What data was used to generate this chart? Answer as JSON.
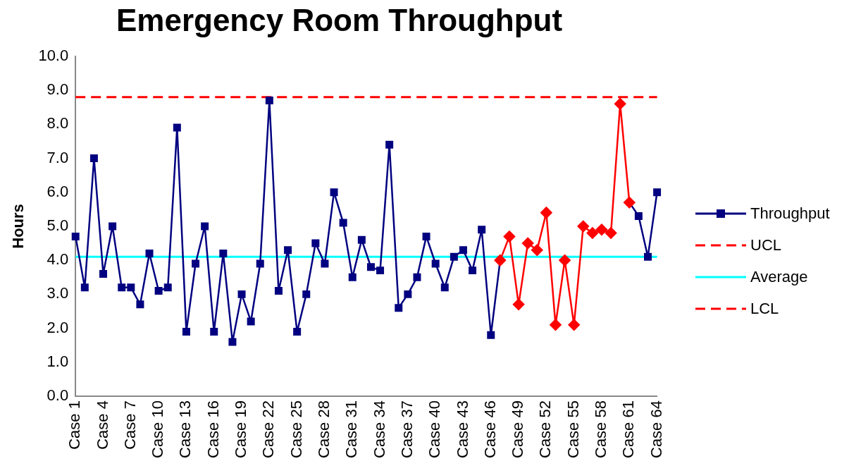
{
  "chart_data": {
    "type": "line",
    "title": "Emergency Room Throughput",
    "ylabel": "Hours",
    "categories": [
      "Case 1",
      null,
      null,
      "Case 4",
      null,
      null,
      "Case 7",
      null,
      null,
      "Case 10",
      null,
      null,
      "Case 13",
      null,
      null,
      "Case 16",
      null,
      null,
      "Case 19",
      null,
      null,
      "Case 22",
      null,
      null,
      "Case 25",
      null,
      null,
      "Case 28",
      null,
      null,
      "Case 31",
      null,
      null,
      "Case 34",
      null,
      null,
      "Case 37",
      null,
      null,
      "Case 40",
      null,
      null,
      "Case 43",
      null,
      null,
      "Case 46",
      null,
      null,
      "Case 49",
      null,
      null,
      "Case 52",
      null,
      null,
      "Case 55",
      null,
      null,
      "Case 58",
      null,
      null,
      "Case 61",
      null,
      null,
      "Case 64"
    ],
    "series": [
      {
        "name": "Throughput",
        "color": "#000080",
        "marker": "square",
        "values": [
          4.7,
          3.2,
          7.0,
          3.6,
          5.0,
          3.2,
          3.2,
          2.7,
          4.2,
          3.1,
          3.2,
          7.9,
          1.9,
          3.9,
          5.0,
          1.9,
          4.2,
          1.6,
          3.0,
          2.2,
          3.9,
          8.7,
          3.1,
          4.3,
          1.9,
          3.0,
          4.5,
          3.9,
          6.0,
          5.1,
          3.5,
          4.6,
          3.8,
          3.7,
          7.4,
          2.6,
          3.0,
          3.5,
          4.7,
          3.9,
          3.2,
          4.1,
          4.3,
          3.7,
          4.9,
          1.8,
          4.0,
          null,
          null,
          null,
          null,
          null,
          null,
          null,
          null,
          null,
          null,
          null,
          null,
          null,
          5.7,
          5.3,
          4.1,
          6.0
        ]
      },
      {
        "color": "#ff0000",
        "marker": "diamond",
        "values": [
          null,
          null,
          null,
          null,
          null,
          null,
          null,
          null,
          null,
          null,
          null,
          null,
          null,
          null,
          null,
          null,
          null,
          null,
          null,
          null,
          null,
          null,
          null,
          null,
          null,
          null,
          null,
          null,
          null,
          null,
          null,
          null,
          null,
          null,
          null,
          null,
          null,
          null,
          null,
          null,
          null,
          null,
          null,
          null,
          null,
          null,
          4.0,
          4.7,
          2.7,
          4.5,
          4.3,
          5.4,
          2.1,
          4.0,
          2.1,
          5.0,
          4.8,
          4.9,
          4.8,
          8.6,
          5.7,
          null,
          null,
          null
        ]
      }
    ],
    "ref_lines": [
      {
        "axis": "y",
        "value": 8.8,
        "label": "UCL",
        "color": "#ff0000",
        "line_style": "dashed"
      },
      {
        "axis": "y",
        "value": 4.1,
        "label": "Average",
        "color": "#00ffff",
        "line_style": "solid"
      },
      {
        "axis": "y",
        "value": null,
        "label": "LCL",
        "color": "#ff0000",
        "line_style": "dashed"
      }
    ],
    "ylim": [
      0,
      10
    ],
    "yticks": [
      {
        "value": 0,
        "label": "0.0"
      },
      {
        "value": 1,
        "label": "1.0"
      },
      {
        "value": 2,
        "label": "2.0"
      },
      {
        "value": 3,
        "label": "3.0"
      },
      {
        "value": 4,
        "label": "4.0"
      },
      {
        "value": 5,
        "label": "5.0"
      },
      {
        "value": 6,
        "label": "6.0"
      },
      {
        "value": 7,
        "label": "7.0"
      },
      {
        "value": 8,
        "label": "8.0"
      },
      {
        "value": 9,
        "label": "9.0"
      },
      {
        "value": 10,
        "label": "10.0"
      }
    ],
    "grid": false,
    "legend": "right"
  }
}
